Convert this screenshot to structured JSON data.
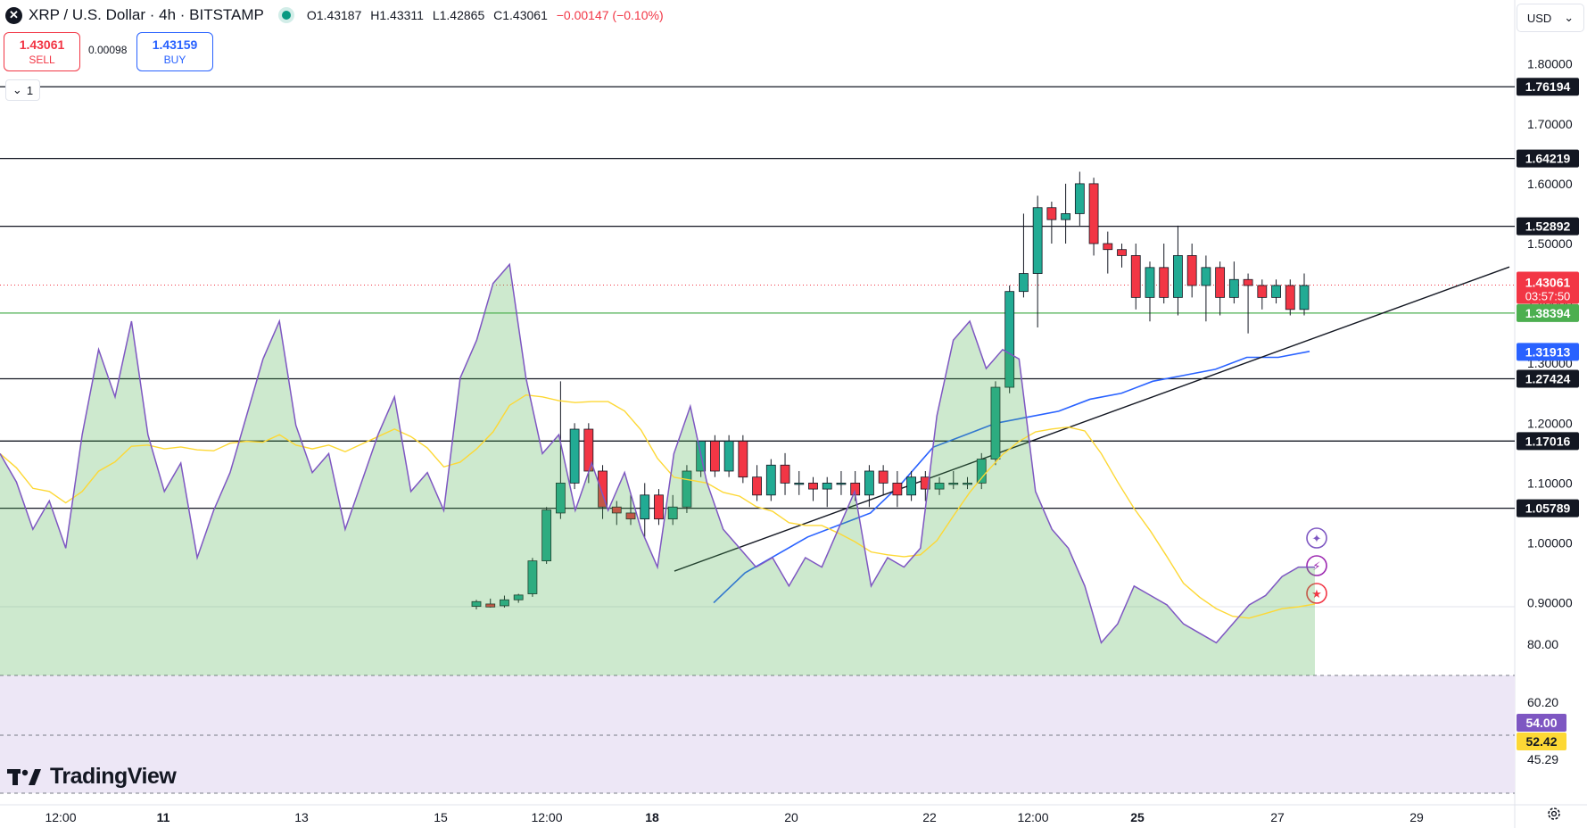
{
  "header": {
    "symbol": "XRP / U.S. Dollar · 4h · BITSTAMP",
    "open": "O1.43187",
    "high": "H1.43311",
    "low": "L1.42865",
    "close": "C1.43061",
    "change": "−0.00147 (−0.10%)"
  },
  "trade": {
    "sell_price": "1.43061",
    "sell_label": "SELL",
    "spread": "0.00098",
    "buy_price": "1.43159",
    "buy_label": "BUY"
  },
  "collapse_count": "1",
  "currency": "USD",
  "brand": "TradingView",
  "colors": {
    "up": "#22ab94",
    "down": "#f23645",
    "sma": "#2962ff",
    "support": "#4caf50",
    "rsi": "#7e57c2",
    "rsi_ma": "#fdd835",
    "rsi_band": "#ede7f6"
  },
  "chart_data": {
    "type": "candlestick",
    "symbol": "XRP / U.S. Dollar",
    "interval": "4h",
    "exchange": "BITSTAMP",
    "y_ticks": [
      "0.90000",
      "1.00000",
      "1.10000",
      "1.20000",
      "1.30000",
      "1.40000",
      "1.50000",
      "1.60000",
      "1.70000",
      "1.80000"
    ],
    "ylim": [
      0.89,
      1.85
    ],
    "x_ticks": [
      "12:00",
      "11",
      "13",
      "15",
      "12:00",
      "18",
      "20",
      "22",
      "12:00",
      "25",
      "27",
      "29"
    ],
    "horizontal_levels": [
      {
        "value": 1.76194,
        "label": "1.76194"
      },
      {
        "value": 1.64219,
        "label": "1.64219"
      },
      {
        "value": 1.52892,
        "label": "1.52892"
      },
      {
        "value": 1.27424,
        "label": "1.27424"
      },
      {
        "value": 1.17016,
        "label": "1.17016"
      },
      {
        "value": 1.05789,
        "label": "1.05789"
      }
    ],
    "support_line": {
      "value": 1.38394,
      "label": "1.38394"
    },
    "last_price": {
      "value": 1.43061,
      "label": "1.43061",
      "countdown": "03:57:50"
    },
    "moving_average": {
      "value": 1.31913,
      "label": "1.31913",
      "values": [
        0.9,
        0.95,
        0.98,
        1.01,
        1.03,
        1.05,
        1.1,
        1.16,
        1.18,
        1.2,
        1.21,
        1.22,
        1.24,
        1.25,
        1.27,
        1.28,
        1.29,
        1.31,
        1.31,
        1.32
      ]
    },
    "trendline": {
      "from": 0.953,
      "to": 1.461
    },
    "candles": [
      [
        0.894,
        0.905,
        0.889,
        0.902
      ],
      [
        0.898,
        0.907,
        0.892,
        0.893
      ],
      [
        0.895,
        0.912,
        0.892,
        0.905
      ],
      [
        0.905,
        0.915,
        0.9,
        0.913
      ],
      [
        0.915,
        0.975,
        0.91,
        0.97
      ],
      [
        0.97,
        1.06,
        0.965,
        1.055
      ],
      [
        1.05,
        1.27,
        1.04,
        1.1
      ],
      [
        1.1,
        1.2,
        1.09,
        1.19
      ],
      [
        1.19,
        1.2,
        1.1,
        1.12
      ],
      [
        1.12,
        1.13,
        1.04,
        1.06
      ],
      [
        1.06,
        1.07,
        1.03,
        1.05
      ],
      [
        1.05,
        1.08,
        1.03,
        1.04
      ],
      [
        1.04,
        1.1,
        1.01,
        1.08
      ],
      [
        1.08,
        1.09,
        1.03,
        1.04
      ],
      [
        1.04,
        1.08,
        1.03,
        1.06
      ],
      [
        1.06,
        1.13,
        1.05,
        1.12
      ],
      [
        1.12,
        1.17,
        1.11,
        1.17
      ],
      [
        1.17,
        1.18,
        1.11,
        1.12
      ],
      [
        1.12,
        1.18,
        1.11,
        1.17
      ],
      [
        1.17,
        1.18,
        1.1,
        1.11
      ],
      [
        1.11,
        1.13,
        1.07,
        1.08
      ],
      [
        1.08,
        1.14,
        1.07,
        1.13
      ],
      [
        1.13,
        1.15,
        1.08,
        1.1
      ],
      [
        1.1,
        1.12,
        1.08,
        1.1
      ],
      [
        1.1,
        1.11,
        1.07,
        1.09
      ],
      [
        1.09,
        1.11,
        1.06,
        1.1
      ],
      [
        1.1,
        1.12,
        1.08,
        1.1
      ],
      [
        1.1,
        1.12,
        1.07,
        1.08
      ],
      [
        1.08,
        1.13,
        1.06,
        1.12
      ],
      [
        1.12,
        1.13,
        1.08,
        1.1
      ],
      [
        1.1,
        1.12,
        1.06,
        1.08
      ],
      [
        1.08,
        1.12,
        1.07,
        1.11
      ],
      [
        1.11,
        1.12,
        1.07,
        1.09
      ],
      [
        1.09,
        1.11,
        1.08,
        1.1
      ],
      [
        1.1,
        1.12,
        1.09,
        1.1
      ],
      [
        1.1,
        1.11,
        1.09,
        1.1
      ],
      [
        1.1,
        1.15,
        1.09,
        1.14
      ],
      [
        1.14,
        1.27,
        1.13,
        1.26
      ],
      [
        1.26,
        1.43,
        1.25,
        1.42
      ],
      [
        1.42,
        1.55,
        1.41,
        1.45
      ],
      [
        1.45,
        1.58,
        1.36,
        1.56
      ],
      [
        1.56,
        1.57,
        1.5,
        1.54
      ],
      [
        1.54,
        1.6,
        1.5,
        1.55
      ],
      [
        1.55,
        1.62,
        1.53,
        1.6
      ],
      [
        1.6,
        1.61,
        1.48,
        1.5
      ],
      [
        1.5,
        1.52,
        1.45,
        1.49
      ],
      [
        1.49,
        1.5,
        1.46,
        1.48
      ],
      [
        1.48,
        1.5,
        1.39,
        1.41
      ],
      [
        1.41,
        1.47,
        1.37,
        1.46
      ],
      [
        1.46,
        1.5,
        1.4,
        1.41
      ],
      [
        1.41,
        1.53,
        1.38,
        1.48
      ],
      [
        1.48,
        1.5,
        1.41,
        1.43
      ],
      [
        1.43,
        1.48,
        1.37,
        1.46
      ],
      [
        1.46,
        1.47,
        1.38,
        1.41
      ],
      [
        1.41,
        1.47,
        1.4,
        1.44
      ],
      [
        1.44,
        1.45,
        1.35,
        1.43
      ],
      [
        1.43,
        1.44,
        1.39,
        1.41
      ],
      [
        1.41,
        1.44,
        1.4,
        1.43
      ],
      [
        1.43,
        1.44,
        1.38,
        1.39
      ],
      [
        1.39,
        1.45,
        1.38,
        1.43
      ]
    ],
    "rsi": {
      "y_ticks": [
        "80.00",
        "60.20",
        "45.29"
      ],
      "value": "54.00",
      "ma_value": "52.42",
      "band_top": 70,
      "band_bottom": 30,
      "values": [
        66,
        63,
        58,
        61,
        56,
        68,
        77,
        72,
        80,
        68,
        62,
        65,
        55,
        60,
        64,
        70,
        76,
        80,
        69,
        64,
        66,
        58,
        63,
        68,
        72,
        62,
        64,
        60,
        74,
        78,
        84,
        86,
        74,
        66,
        68,
        60,
        65,
        60,
        64,
        58,
        54,
        66,
        71,
        63,
        58,
        56,
        54,
        55,
        52,
        55,
        54,
        58,
        62,
        52,
        55,
        54,
        56,
        70,
        78,
        80,
        75,
        77,
        76,
        62,
        58,
        56,
        52,
        46,
        48,
        52,
        51,
        50,
        48,
        47,
        46,
        48,
        50,
        51,
        53,
        54,
        54
      ]
    }
  },
  "indicator_icons": [
    "sparkle-icon",
    "lightning-icon",
    "us-flag-icon"
  ]
}
